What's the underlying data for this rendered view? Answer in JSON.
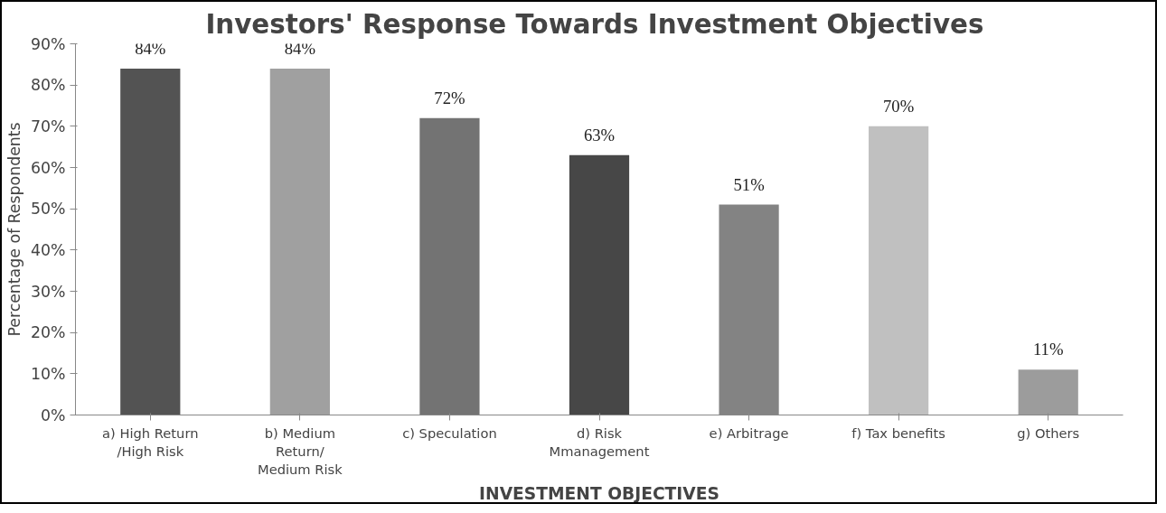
{
  "chart_data": {
    "type": "bar",
    "title": "Investors'  Response Towards Investment Objectives",
    "xlabel": "INVESTMENT OBJECTIVES",
    "ylabel": "Percentage of Respondents",
    "categories": [
      "a) High Return\n/High Risk",
      "b) Medium\nReturn/\nMedium Risk",
      "c) Speculation",
      "d) Risk\nMmanagement",
      "e) Arbitrage",
      "f) Tax benefits",
      "g) Others"
    ],
    "values": [
      84,
      84,
      72,
      63,
      51,
      70,
      11
    ],
    "colors": [
      "#535353",
      "#a0a0a0",
      "#737373",
      "#474747",
      "#838383",
      "#c0c0c0",
      "#9c9c9c"
    ],
    "value_labels": [
      "84%",
      "84%",
      "72%",
      "63%",
      "51%",
      "70%",
      "11%"
    ],
    "ylim": [
      0,
      90
    ],
    "yticks": [
      {
        "value": 0,
        "label": "0%"
      },
      {
        "value": 10,
        "label": "10%"
      },
      {
        "value": 20,
        "label": "20%"
      },
      {
        "value": 30,
        "label": "30%"
      },
      {
        "value": 40,
        "label": "40%"
      },
      {
        "value": 50,
        "label": "50%"
      },
      {
        "value": 60,
        "label": "60%"
      },
      {
        "value": 70,
        "label": "70%"
      },
      {
        "value": 80,
        "label": "80%"
      },
      {
        "value": 90,
        "label": "90%"
      }
    ],
    "grid": false
  }
}
